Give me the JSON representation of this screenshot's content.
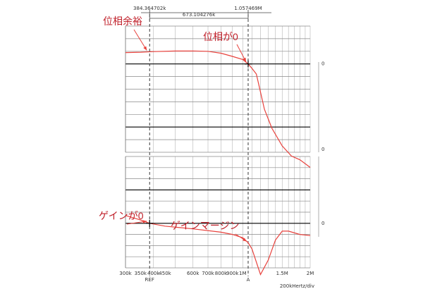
{
  "chart_data": {
    "type": "line",
    "x_axis": {
      "scale": "log",
      "units": "Hz",
      "range": [
        300000,
        2000000
      ],
      "tick_labels": [
        "300k",
        "350k",
        "400k",
        "450k",
        "600k",
        "700k",
        "800k",
        "900k",
        "1M",
        "1.5M",
        "2M"
      ],
      "tick_values": [
        300000,
        350000,
        400000,
        450000,
        600000,
        700000,
        800000,
        900000,
        1000000,
        1500000,
        2000000
      ],
      "marker_labels": [
        "REF",
        "A"
      ],
      "unit_label": "200kHertz/div"
    },
    "cursors": {
      "ref_label": "384.364702k",
      "ref_x": 384364.702,
      "a_label": "1.057469M",
      "a_x": 1057469,
      "delta_label": "673.104276k",
      "delta_x": 673104.276
    },
    "panels": [
      {
        "name": "phase",
        "zero_label": "0",
        "lower_label": "0",
        "series": [
          {
            "color": "#e8413c",
            "x": [
              300000,
              350000,
              400000,
              500000,
              600000,
              700000,
              800000,
              900000,
              1000000,
              1057469,
              1100000,
              1150000,
              1250000,
              1350000,
              1500000,
              1650000,
              1800000,
              2000000
            ],
            "y": [
              0.9,
              0.93,
              0.98,
              1.02,
              1.03,
              1.0,
              0.85,
              0.6,
              0.35,
              0.0,
              -0.35,
              -0.8,
              -3.6,
              -5.1,
              -6.5,
              -7.3,
              -7.6,
              -8.2
            ]
          }
        ]
      },
      {
        "name": "gain",
        "zero_label": "0",
        "series": [
          {
            "color": "#e8413c",
            "x": [
              300000,
              350000,
              384364.702,
              450000,
              600000,
              800000,
              900000,
              1000000,
              1057469,
              1100000,
              1200000,
              1300000,
              1400000,
              1500000,
              1600000,
              1800000,
              2000000
            ],
            "y": [
              0.7,
              0.3,
              0.0,
              -0.25,
              -0.5,
              -0.8,
              -1.0,
              -1.3,
              -1.75,
              -2.3,
              -4.6,
              -3.3,
              -1.5,
              -0.7,
              -0.7,
              -1.0,
              -1.1
            ]
          }
        ]
      }
    ],
    "annotations": [
      {
        "name": "phase-margin",
        "text": "位相余裕"
      },
      {
        "name": "phase-zero",
        "text": "位相が0"
      },
      {
        "name": "gain-zero",
        "text": "ゲインが0"
      },
      {
        "name": "gain-margin",
        "text": "ゲインマージン"
      }
    ],
    "colors": {
      "trace": "#e8413c",
      "annotation": "#c0202a",
      "grid": "#999999",
      "major": "#000000"
    }
  }
}
